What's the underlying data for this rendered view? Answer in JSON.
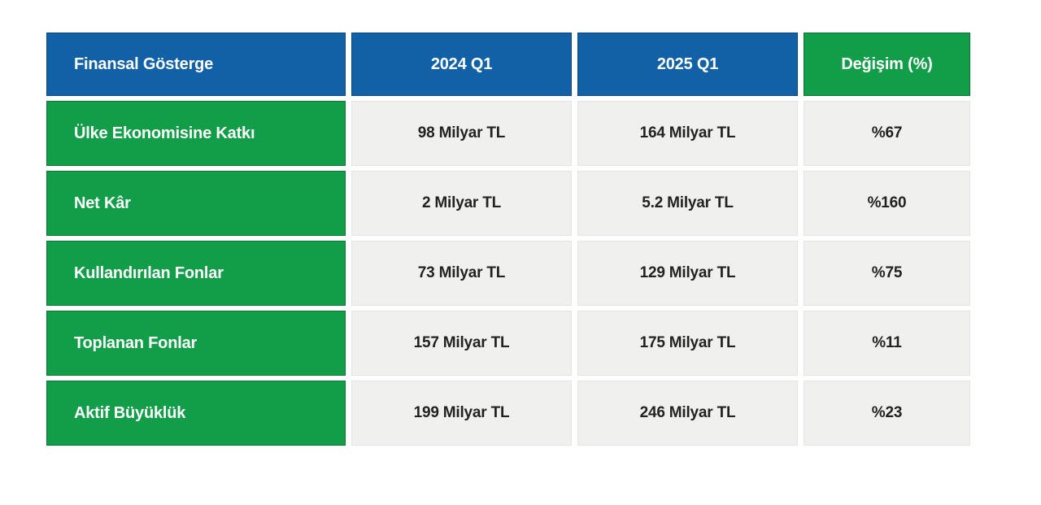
{
  "chart_data": {
    "type": "table",
    "columns": [
      "Finansal Gösterge",
      "2024 Q1",
      "2025 Q1",
      "Değişim (%)"
    ],
    "rows": [
      [
        "Ülke Ekonomisine Katkı",
        "98 Milyar TL",
        "164 Milyar TL",
        "%67"
      ],
      [
        "Net Kâr",
        "2 Milyar TL",
        "5.2 Milyar TL",
        "%160"
      ],
      [
        "Kullandırılan Fonlar",
        "73 Milyar TL",
        "129 Milyar TL",
        "%75"
      ],
      [
        "Toplanan Fonlar",
        "157 Milyar TL",
        "175 Milyar TL",
        "%11"
      ],
      [
        "Aktif Büyüklük",
        "199 Milyar TL",
        "246 Milyar TL",
        "%23"
      ]
    ]
  },
  "colors": {
    "header_blue": "#1261a7",
    "accent_green": "#129e48",
    "cell_gray": "#f0f1ef",
    "text_dark": "#222222",
    "text_white": "#ffffff"
  }
}
